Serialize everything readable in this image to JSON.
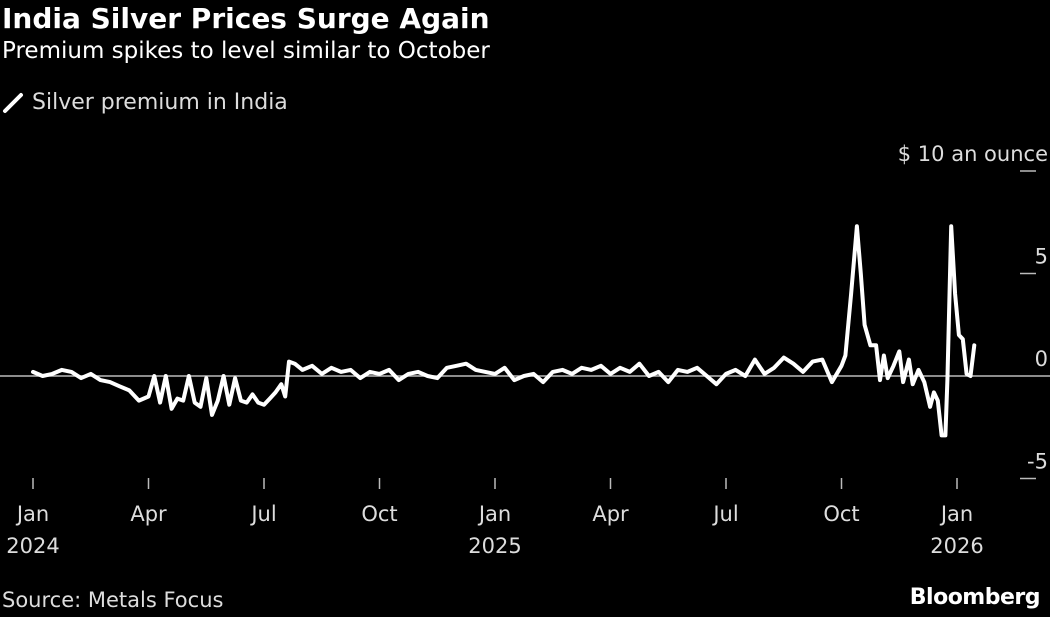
{
  "chart_data": {
    "type": "line",
    "title": "India Silver Prices Surge Again",
    "subtitle": "Premium spikes to level similar to October",
    "legend": [
      {
        "label": "Silver premium in India",
        "color": "#ffffff"
      }
    ],
    "ylabel": "$ 10 an ounce",
    "ylim": [
      -5,
      10
    ],
    "yticks": [
      {
        "v": 10,
        "label": "$ 10 an ounce"
      },
      {
        "v": 5,
        "label": "5"
      },
      {
        "v": 0,
        "label": "0"
      },
      {
        "v": -5,
        "label": "-5"
      }
    ],
    "xlabel_unit": "months since Jan 2024",
    "xlim": [
      0,
      25
    ],
    "xticks": [
      {
        "v": 0,
        "label": "Jan",
        "year": "2024"
      },
      {
        "v": 3,
        "label": "Apr"
      },
      {
        "v": 6,
        "label": "Jul"
      },
      {
        "v": 9,
        "label": "Oct"
      },
      {
        "v": 12,
        "label": "Jan",
        "year": "2025"
      },
      {
        "v": 15,
        "label": "Apr"
      },
      {
        "v": 18,
        "label": "Jul"
      },
      {
        "v": 21,
        "label": "Oct"
      },
      {
        "v": 24,
        "label": "Jan",
        "year": "2026"
      }
    ],
    "series": [
      {
        "name": "Silver premium in India",
        "points": [
          [
            0,
            0.2
          ],
          [
            0.25,
            0
          ],
          [
            0.5,
            0.1
          ],
          [
            0.75,
            0.3
          ],
          [
            1,
            0.2
          ],
          [
            1.25,
            -0.1
          ],
          [
            1.5,
            0.1
          ],
          [
            1.75,
            -0.2
          ],
          [
            2,
            -0.3
          ],
          [
            2.25,
            -0.5
          ],
          [
            2.5,
            -0.7
          ],
          [
            2.75,
            -1.2
          ],
          [
            3,
            -1.0
          ],
          [
            3.15,
            0
          ],
          [
            3.3,
            -1.3
          ],
          [
            3.45,
            0
          ],
          [
            3.6,
            -1.6
          ],
          [
            3.75,
            -1.1
          ],
          [
            3.9,
            -1.2
          ],
          [
            4.05,
            0
          ],
          [
            4.2,
            -1.3
          ],
          [
            4.35,
            -1.5
          ],
          [
            4.5,
            -0.1
          ],
          [
            4.65,
            -1.9
          ],
          [
            4.8,
            -1.2
          ],
          [
            4.95,
            0
          ],
          [
            5.1,
            -1.4
          ],
          [
            5.25,
            -0.1
          ],
          [
            5.4,
            -1.2
          ],
          [
            5.55,
            -1.3
          ],
          [
            5.7,
            -0.9
          ],
          [
            5.85,
            -1.3
          ],
          [
            6,
            -1.4
          ],
          [
            6.15,
            -1.1
          ],
          [
            6.3,
            -0.8
          ],
          [
            6.45,
            -0.4
          ],
          [
            6.55,
            -1.0
          ],
          [
            6.65,
            0.7
          ],
          [
            6.8,
            0.6
          ],
          [
            7,
            0.3
          ],
          [
            7.25,
            0.5
          ],
          [
            7.5,
            0.1
          ],
          [
            7.75,
            0.4
          ],
          [
            8,
            0.2
          ],
          [
            8.25,
            0.3
          ],
          [
            8.5,
            -0.1
          ],
          [
            8.75,
            0.2
          ],
          [
            9,
            0.1
          ],
          [
            9.25,
            0.3
          ],
          [
            9.5,
            -0.2
          ],
          [
            9.75,
            0.1
          ],
          [
            10,
            0.2
          ],
          [
            10.25,
            0
          ],
          [
            10.5,
            -0.1
          ],
          [
            10.75,
            0.4
          ],
          [
            11,
            0.5
          ],
          [
            11.25,
            0.6
          ],
          [
            11.5,
            0.3
          ],
          [
            11.75,
            0.2
          ],
          [
            12,
            0.1
          ],
          [
            12.25,
            0.4
          ],
          [
            12.5,
            -0.2
          ],
          [
            12.75,
            0
          ],
          [
            13,
            0.1
          ],
          [
            13.25,
            -0.3
          ],
          [
            13.5,
            0.2
          ],
          [
            13.75,
            0.3
          ],
          [
            14,
            0.1
          ],
          [
            14.25,
            0.4
          ],
          [
            14.5,
            0.3
          ],
          [
            14.75,
            0.5
          ],
          [
            15,
            0.1
          ],
          [
            15.25,
            0.4
          ],
          [
            15.5,
            0.2
          ],
          [
            15.75,
            0.6
          ],
          [
            16,
            0
          ],
          [
            16.25,
            0.2
          ],
          [
            16.5,
            -0.3
          ],
          [
            16.75,
            0.3
          ],
          [
            17,
            0.2
          ],
          [
            17.25,
            0.4
          ],
          [
            17.5,
            0
          ],
          [
            17.75,
            -0.4
          ],
          [
            18,
            0.1
          ],
          [
            18.25,
            0.3
          ],
          [
            18.5,
            0
          ],
          [
            18.75,
            0.8
          ],
          [
            19,
            0.1
          ],
          [
            19.25,
            0.4
          ],
          [
            19.5,
            0.9
          ],
          [
            19.75,
            0.6
          ],
          [
            20,
            0.2
          ],
          [
            20.25,
            0.7
          ],
          [
            20.5,
            0.8
          ],
          [
            20.75,
            -0.3
          ],
          [
            21,
            0.5
          ],
          [
            21.1,
            1
          ],
          [
            21.25,
            4
          ],
          [
            21.4,
            7.3
          ],
          [
            21.5,
            5
          ],
          [
            21.6,
            2.5
          ],
          [
            21.75,
            1.5
          ],
          [
            21.9,
            1.5
          ],
          [
            22,
            -0.2
          ],
          [
            22.1,
            1
          ],
          [
            22.2,
            -0.1
          ],
          [
            22.35,
            0.5
          ],
          [
            22.5,
            1.2
          ],
          [
            22.6,
            -0.3
          ],
          [
            22.75,
            0.8
          ],
          [
            22.85,
            -0.4
          ],
          [
            23,
            0.3
          ],
          [
            23.15,
            -0.3
          ],
          [
            23.3,
            -1.5
          ],
          [
            23.4,
            -0.8
          ],
          [
            23.5,
            -1.2
          ],
          [
            23.6,
            -2.9
          ],
          [
            23.7,
            -2.9
          ],
          [
            23.75,
            -0.2
          ],
          [
            23.85,
            7.3
          ],
          [
            23.95,
            4
          ],
          [
            24.05,
            2
          ],
          [
            24.15,
            1.8
          ],
          [
            24.25,
            0.1
          ],
          [
            24.35,
            0
          ],
          [
            24.45,
            1.5
          ]
        ]
      }
    ]
  },
  "footer": {
    "source": "Source: Metals Focus",
    "logo": "Bloomberg"
  }
}
